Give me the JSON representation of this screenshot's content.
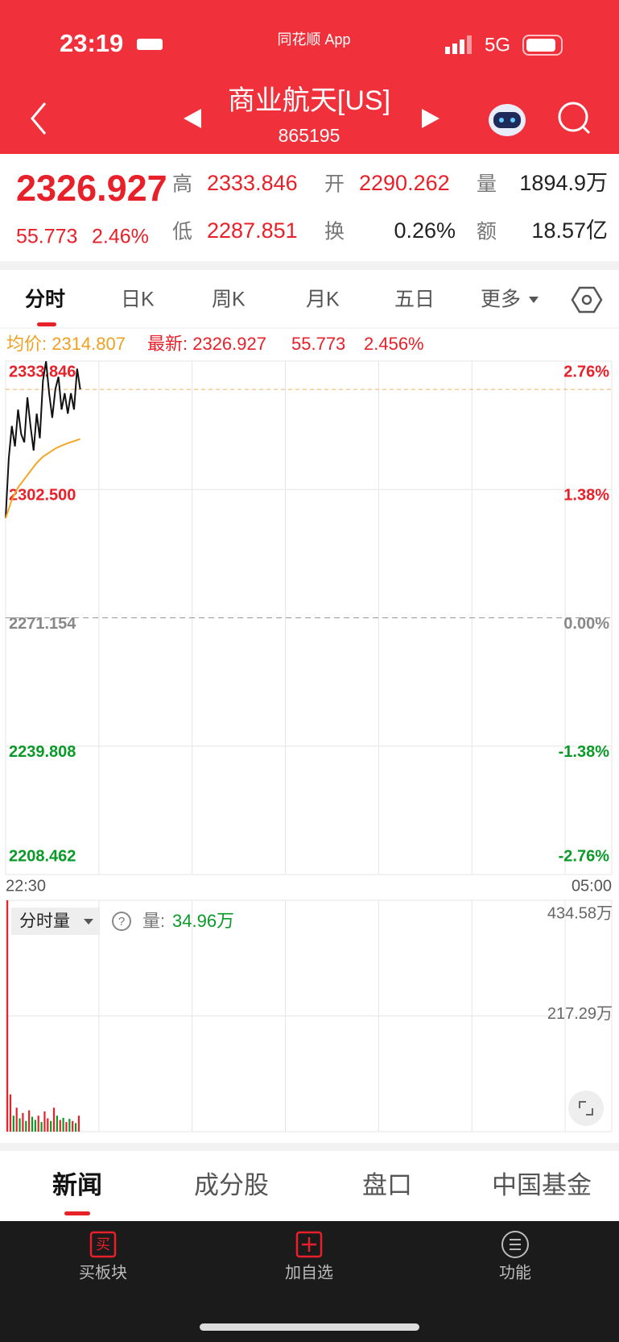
{
  "status_bar": {
    "time": "23:19",
    "app": "同花顺 App",
    "network": "5G"
  },
  "header": {
    "title": "商业航天[US]",
    "code": "865195"
  },
  "quote": {
    "price": "2326.927",
    "change": "55.773",
    "change_pct": "2.46%",
    "high_label": "高",
    "high": "2333.846",
    "open_label": "开",
    "open": "2290.262",
    "volume_label": "量",
    "volume": "1894.9万",
    "low_label": "低",
    "low": "2287.851",
    "turnover_label": "换",
    "turnover": "0.26%",
    "amount_label": "额",
    "amount": "18.57亿"
  },
  "tabs": [
    "分时",
    "日K",
    "周K",
    "月K",
    "五日",
    "更多"
  ],
  "info": {
    "avg": "均价: 2314.807",
    "latest": "最新: 2326.927",
    "change": "55.773",
    "change_pct": "2.456%"
  },
  "volume_info": {
    "selector": "分时量",
    "label": "量:",
    "value": "34.96万"
  },
  "chart_data": [
    {
      "type": "line",
      "xlim": [
        0,
        390
      ],
      "xtick_labels": [
        "22:30",
        "05:00"
      ],
      "ylim": [
        2208.462,
        2333.846
      ],
      "yticks": [
        {
          "value": 2333.846,
          "label": "2333.846"
        },
        {
          "value": 2302.5,
          "label": "2302.500"
        },
        {
          "value": 2271.154,
          "label": "2271.154"
        },
        {
          "value": 2239.808,
          "label": "2239.808"
        },
        {
          "value": 2208.462,
          "label": "2208.462"
        }
      ],
      "ytick_colors": [
        "#e8202a",
        "#e8202a",
        "#888888",
        "#0a9a28",
        "#0a9a28"
      ],
      "y2lim": [
        -2.76,
        2.76
      ],
      "y2ticks": [
        {
          "value": 2.76,
          "label": "2.76%"
        },
        {
          "value": 1.38,
          "label": "1.38%"
        },
        {
          "value": 0,
          "label": "0.00%"
        },
        {
          "value": -1.38,
          "label": "-1.38%"
        },
        {
          "value": -2.76,
          "label": "-2.76%"
        }
      ],
      "reference_line": 2326.927,
      "series": [
        {
          "name": "最新",
          "color": "#111111",
          "x": [
            0,
            2,
            4,
            6,
            8,
            10,
            12,
            14,
            16,
            18,
            20,
            22,
            24,
            26,
            28,
            30,
            32,
            34,
            36,
            38,
            40,
            42,
            44,
            46,
            48
          ],
          "values": [
            2295.5,
            2310,
            2318,
            2313,
            2322,
            2316,
            2314,
            2325,
            2318,
            2312,
            2321,
            2315,
            2329,
            2333.8,
            2326,
            2320,
            2327,
            2330,
            2322,
            2326,
            2321,
            2326,
            2322,
            2332,
            2326.927
          ]
        },
        {
          "name": "均价",
          "color": "#f5a623",
          "x": [
            0,
            4,
            8,
            12,
            16,
            20,
            24,
            28,
            32,
            36,
            40,
            44,
            48
          ],
          "values": [
            2295.5,
            2300,
            2303,
            2305,
            2307,
            2309,
            2310.5,
            2311.5,
            2312.5,
            2313.2,
            2313.8,
            2314.3,
            2314.807
          ]
        }
      ]
    },
    {
      "type": "bar",
      "xlim": [
        0,
        390
      ],
      "ylim": [
        0,
        434.58
      ],
      "yticks": [
        {
          "value": 434.58,
          "label": "434.58万"
        },
        {
          "value": 217.29,
          "label": "217.29万"
        }
      ],
      "x": [
        0,
        2,
        4,
        6,
        8,
        10,
        12,
        14,
        16,
        18,
        20,
        22,
        24,
        26,
        28,
        30,
        32,
        34,
        36,
        38,
        40,
        42,
        44,
        46
      ],
      "values": [
        434.58,
        70,
        30,
        45,
        25,
        35,
        20,
        40,
        28,
        22,
        30,
        18,
        38,
        25,
        20,
        45,
        30,
        22,
        26,
        18,
        24,
        20,
        16,
        30
      ],
      "colors": [
        "#e8202a",
        "#e8202a",
        "#0a9a28",
        "#e8202a",
        "#0a9a28",
        "#e8202a",
        "#0a9a28",
        "#e8202a",
        "#0a9a28",
        "#0a9a28",
        "#e8202a",
        "#0a9a28",
        "#e8202a",
        "#e8202a",
        "#0a9a28",
        "#e8202a",
        "#0a9a28",
        "#e8202a",
        "#0a9a28",
        "#e8202a",
        "#0a9a28",
        "#e8202a",
        "#0a9a28",
        "#e8202a"
      ]
    }
  ],
  "bottom_tabs": [
    "新闻",
    "成分股",
    "盘口",
    "中国基金"
  ],
  "toolbar": {
    "buy_icon": "买",
    "buy": "买板块",
    "add": "加自选",
    "func": "功能"
  }
}
